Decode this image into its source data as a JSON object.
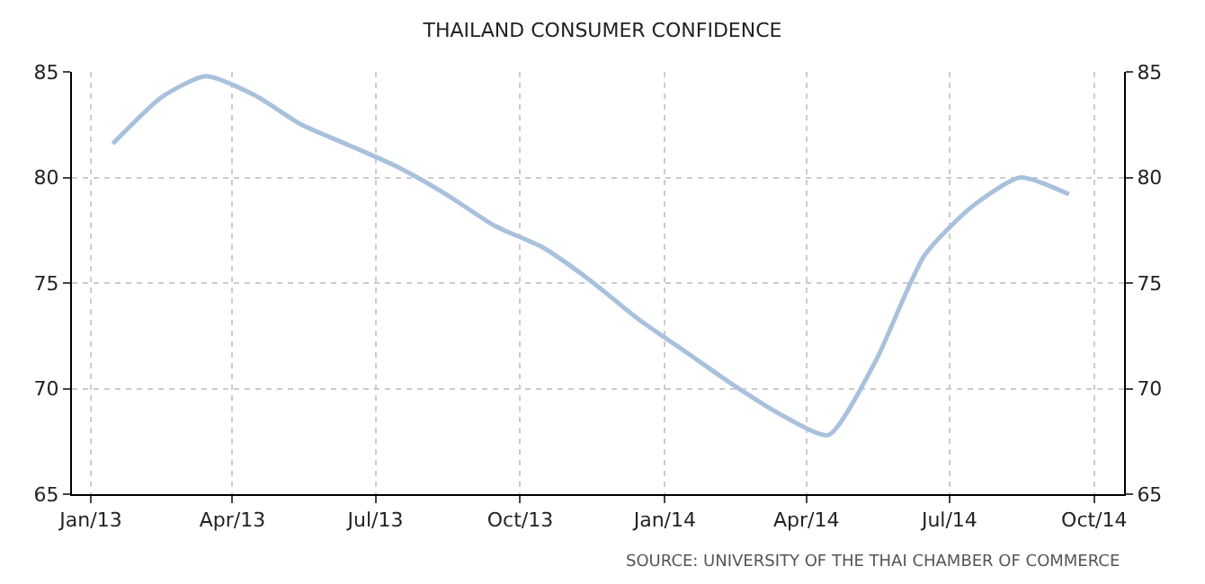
{
  "chart_data": {
    "type": "line",
    "title": "THAILAND CONSUMER CONFIDENCE",
    "x": [
      "2013-01-15",
      "2013-02-15",
      "2013-03-15",
      "2013-04-15",
      "2013-05-15",
      "2013-06-15",
      "2013-07-15",
      "2013-08-15",
      "2013-09-15",
      "2013-10-15",
      "2013-11-15",
      "2013-12-15",
      "2014-01-15",
      "2014-02-15",
      "2014-03-15",
      "2014-04-15",
      "2014-05-15",
      "2014-06-15",
      "2014-07-15",
      "2014-08-15",
      "2014-09-15"
    ],
    "series": [
      {
        "color": "#a9c1dc",
        "values": [
          81.6,
          83.8,
          84.8,
          83.9,
          82.5,
          81.5,
          80.5,
          79.2,
          77.7,
          76.7,
          75.1,
          73.3,
          71.7,
          70.1,
          68.8,
          67.8,
          71.3,
          76.3,
          78.6,
          80.0,
          79.2
        ]
      }
    ],
    "xlim": [
      "2012-12-20",
      "2014-10-20"
    ],
    "xticks": [
      {
        "value": "2013-01-01",
        "label": "Jan/13"
      },
      {
        "value": "2013-04-01",
        "label": "Apr/13"
      },
      {
        "value": "2013-07-01",
        "label": "Jul/13"
      },
      {
        "value": "2013-10-01",
        "label": "Oct/13"
      },
      {
        "value": "2014-01-01",
        "label": "Jan/14"
      },
      {
        "value": "2014-04-01",
        "label": "Apr/14"
      },
      {
        "value": "2014-07-01",
        "label": "Jul/14"
      },
      {
        "value": "2014-10-01",
        "label": "Oct/14"
      }
    ],
    "ylim": [
      65,
      85
    ],
    "yticks": [
      65,
      70,
      75,
      80,
      85
    ],
    "y2lim": [
      65,
      85
    ],
    "y2ticks": [
      65,
      70,
      75,
      80,
      85
    ],
    "grid": true,
    "marker": "none",
    "line_style": "solid",
    "annotations": [
      "SOURCE: UNIVERSITY OF THE THAI CHAMBER OF COMMERCE"
    ]
  }
}
